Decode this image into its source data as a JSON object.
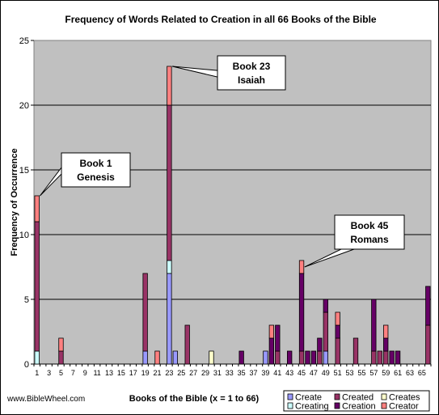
{
  "chart_data": {
    "type": "bar",
    "stacked": true,
    "title": "Frequency of Words Related to Creation in all 66 Books of the Bible",
    "xlabel": "Books of the Bible (x = 1 to 66)",
    "ylabel": "Frequency of Occurrence",
    "ylim": [
      0,
      25
    ],
    "yticks": [
      0,
      5,
      10,
      15,
      20,
      25
    ],
    "x_tick_labels": [
      1,
      3,
      5,
      7,
      9,
      11,
      13,
      15,
      17,
      19,
      21,
      23,
      25,
      27,
      29,
      31,
      33,
      35,
      37,
      39,
      41,
      43,
      45,
      47,
      49,
      51,
      53,
      55,
      57,
      59,
      61,
      63,
      65
    ],
    "grid": true,
    "legend_position": "bottom-right",
    "source": "www.BibleWheel.com",
    "series": [
      {
        "name": "Create",
        "color": "#9999ff",
        "values": {
          "19": 1,
          "23": 7,
          "24": 1,
          "39": 1,
          "49": 1
        }
      },
      {
        "name": "Creating",
        "color": "#ccffff",
        "values": {
          "1": 1,
          "23": 1
        }
      },
      {
        "name": "Created",
        "color": "#993366",
        "values": {
          "1": 10,
          "5": 1,
          "19": 6,
          "23": 12,
          "26": 3,
          "41": 1,
          "45": 1,
          "48": 1,
          "49": 3,
          "51": 2,
          "54": 2,
          "57": 1,
          "58": 1,
          "59": 1,
          "66": 3
        }
      },
      {
        "name": "Creation",
        "color": "#660066",
        "values": {
          "35": 1,
          "40": 2,
          "41": 2,
          "43": 1,
          "45": 6,
          "46": 1,
          "47": 1,
          "48": 1,
          "49": 1,
          "51": 1,
          "57": 4,
          "59": 1,
          "60": 1,
          "61": 1,
          "66": 3
        }
      },
      {
        "name": "Creates",
        "color": "#ffffcc",
        "values": {
          "30": 1
        }
      },
      {
        "name": "Creator",
        "color": "#ff8080",
        "values": {
          "1": 2,
          "5": 1,
          "21": 1,
          "23": 3,
          "40": 1,
          "45": 1,
          "51": 1,
          "59": 1
        }
      }
    ],
    "annotations": [
      {
        "line1": "Book 1",
        "line2": "Genesis",
        "book": 1
      },
      {
        "line1": "Book 23",
        "line2": "Isaiah",
        "book": 23
      },
      {
        "line1": "Book 45",
        "line2": "Romans",
        "book": 45
      }
    ]
  }
}
